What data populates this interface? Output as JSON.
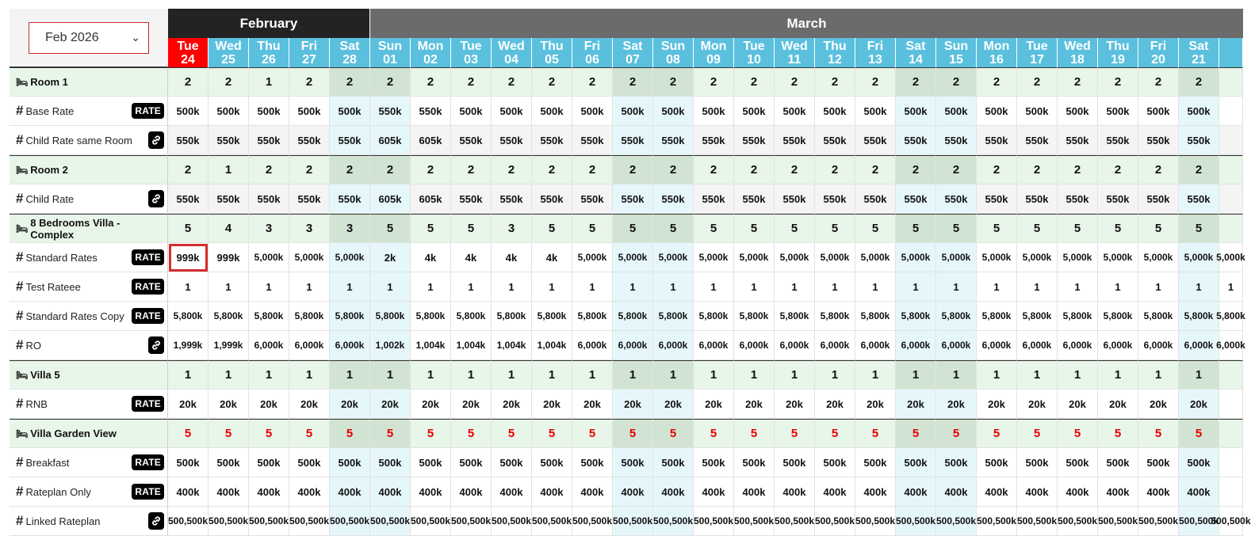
{
  "month_select": {
    "value": "Feb 2026"
  },
  "months": [
    {
      "name": "February",
      "span": 5
    },
    {
      "name": "March",
      "span": 22
    }
  ],
  "days": [
    {
      "dow": "Tue",
      "d": "24",
      "weekend": false,
      "today": true
    },
    {
      "dow": "Wed",
      "d": "25",
      "weekend": false
    },
    {
      "dow": "Thu",
      "d": "26",
      "weekend": false
    },
    {
      "dow": "Fri",
      "d": "27",
      "weekend": false
    },
    {
      "dow": "Sat",
      "d": "28",
      "weekend": true
    },
    {
      "dow": "Sun",
      "d": "01",
      "weekend": true
    },
    {
      "dow": "Mon",
      "d": "02",
      "weekend": false
    },
    {
      "dow": "Tue",
      "d": "03",
      "weekend": false
    },
    {
      "dow": "Wed",
      "d": "04",
      "weekend": false
    },
    {
      "dow": "Thu",
      "d": "05",
      "weekend": false
    },
    {
      "dow": "Fri",
      "d": "06",
      "weekend": false
    },
    {
      "dow": "Sat",
      "d": "07",
      "weekend": true
    },
    {
      "dow": "Sun",
      "d": "08",
      "weekend": true
    },
    {
      "dow": "Mon",
      "d": "09",
      "weekend": false
    },
    {
      "dow": "Tue",
      "d": "10",
      "weekend": false
    },
    {
      "dow": "Wed",
      "d": "11",
      "weekend": false
    },
    {
      "dow": "Thu",
      "d": "12",
      "weekend": false
    },
    {
      "dow": "Fri",
      "d": "13",
      "weekend": false
    },
    {
      "dow": "Sat",
      "d": "14",
      "weekend": true
    },
    {
      "dow": "Sun",
      "d": "15",
      "weekend": true
    },
    {
      "dow": "Mon",
      "d": "16",
      "weekend": false
    },
    {
      "dow": "Tue",
      "d": "17",
      "weekend": false
    },
    {
      "dow": "Wed",
      "d": "18",
      "weekend": false
    },
    {
      "dow": "Thu",
      "d": "19",
      "weekend": false
    },
    {
      "dow": "Fri",
      "d": "20",
      "weekend": false
    },
    {
      "dow": "Sat",
      "d": "21",
      "weekend": true
    },
    {
      "dow": "",
      "d": "",
      "weekend": false
    }
  ],
  "badge_text": "RATE",
  "rows": [
    {
      "type": "room",
      "label": "Room 1",
      "values": [
        "2",
        "2",
        "1",
        "2",
        "2",
        "2",
        "2",
        "2",
        "2",
        "2",
        "2",
        "2",
        "2",
        "2",
        "2",
        "2",
        "2",
        "2",
        "2",
        "2",
        "2",
        "2",
        "2",
        "2",
        "2",
        "2",
        ""
      ]
    },
    {
      "type": "rate",
      "label": "Base Rate",
      "badge": "rate",
      "values": [
        "500k",
        "500k",
        "500k",
        "500k",
        "500k",
        "550k",
        "550k",
        "500k",
        "500k",
        "500k",
        "500k",
        "500k",
        "500k",
        "500k",
        "500k",
        "500k",
        "500k",
        "500k",
        "500k",
        "500k",
        "500k",
        "500k",
        "500k",
        "500k",
        "500k",
        "500k",
        ""
      ]
    },
    {
      "type": "rate",
      "label": "Child Rate same Room",
      "badge": "link",
      "alt": true,
      "values": [
        "550k",
        "550k",
        "550k",
        "550k",
        "550k",
        "605k",
        "605k",
        "550k",
        "550k",
        "550k",
        "550k",
        "550k",
        "550k",
        "550k",
        "550k",
        "550k",
        "550k",
        "550k",
        "550k",
        "550k",
        "550k",
        "550k",
        "550k",
        "550k",
        "550k",
        "550k",
        ""
      ]
    },
    {
      "type": "room",
      "label": "Room 2",
      "values": [
        "2",
        "1",
        "2",
        "2",
        "2",
        "2",
        "2",
        "2",
        "2",
        "2",
        "2",
        "2",
        "2",
        "2",
        "2",
        "2",
        "2",
        "2",
        "2",
        "2",
        "2",
        "2",
        "2",
        "2",
        "2",
        "2",
        ""
      ]
    },
    {
      "type": "rate",
      "label": "Child Rate",
      "badge": "link",
      "alt": true,
      "values": [
        "550k",
        "550k",
        "550k",
        "550k",
        "550k",
        "605k",
        "605k",
        "550k",
        "550k",
        "550k",
        "550k",
        "550k",
        "550k",
        "550k",
        "550k",
        "550k",
        "550k",
        "550k",
        "550k",
        "550k",
        "550k",
        "550k",
        "550k",
        "550k",
        "550k",
        "550k",
        ""
      ]
    },
    {
      "type": "room",
      "label": "8 Bedrooms Villa - Complex",
      "values": [
        "5",
        "4",
        "3",
        "3",
        "3",
        "5",
        "5",
        "5",
        "3",
        "5",
        "5",
        "5",
        "5",
        "5",
        "5",
        "5",
        "5",
        "5",
        "5",
        "5",
        "5",
        "5",
        "5",
        "5",
        "5",
        "5",
        ""
      ]
    },
    {
      "type": "rate",
      "label": "Standard Rates",
      "badge": "rate",
      "selected": 0,
      "values": [
        "999k",
        "999k",
        "5,000k",
        "5,000k",
        "5,000k",
        "2k",
        "4k",
        "4k",
        "4k",
        "4k",
        "5,000k",
        "5,000k",
        "5,000k",
        "5,000k",
        "5,000k",
        "5,000k",
        "5,000k",
        "5,000k",
        "5,000k",
        "5,000k",
        "5,000k",
        "5,000k",
        "5,000k",
        "5,000k",
        "5,000k",
        "5,000k",
        "5,000k"
      ]
    },
    {
      "type": "rate",
      "label": "Test Rateee",
      "badge": "rate",
      "values": [
        "1",
        "1",
        "1",
        "1",
        "1",
        "1",
        "1",
        "1",
        "1",
        "1",
        "1",
        "1",
        "1",
        "1",
        "1",
        "1",
        "1",
        "1",
        "1",
        "1",
        "1",
        "1",
        "1",
        "1",
        "1",
        "1",
        "1"
      ]
    },
    {
      "type": "rate",
      "label": "Standard Rates Copy",
      "badge": "rate",
      "values": [
        "5,800k",
        "5,800k",
        "5,800k",
        "5,800k",
        "5,800k",
        "5,800k",
        "5,800k",
        "5,800k",
        "5,800k",
        "5,800k",
        "5,800k",
        "5,800k",
        "5,800k",
        "5,800k",
        "5,800k",
        "5,800k",
        "5,800k",
        "5,800k",
        "5,800k",
        "5,800k",
        "5,800k",
        "5,800k",
        "5,800k",
        "5,800k",
        "5,800k",
        "5,800k",
        "5,800k"
      ]
    },
    {
      "type": "rate",
      "label": "RO",
      "badge": "link",
      "values": [
        "1,999k",
        "1,999k",
        "6,000k",
        "6,000k",
        "6,000k",
        "1,002k",
        "1,004k",
        "1,004k",
        "1,004k",
        "1,004k",
        "6,000k",
        "6,000k",
        "6,000k",
        "6,000k",
        "6,000k",
        "6,000k",
        "6,000k",
        "6,000k",
        "6,000k",
        "6,000k",
        "6,000k",
        "6,000k",
        "6,000k",
        "6,000k",
        "6,000k",
        "6,000k",
        "6,000k"
      ]
    },
    {
      "type": "room",
      "label": "Villa 5",
      "values": [
        "1",
        "1",
        "1",
        "1",
        "1",
        "1",
        "1",
        "1",
        "1",
        "1",
        "1",
        "1",
        "1",
        "1",
        "1",
        "1",
        "1",
        "1",
        "1",
        "1",
        "1",
        "1",
        "1",
        "1",
        "1",
        "1",
        ""
      ]
    },
    {
      "type": "rate",
      "label": "RNB",
      "badge": "rate",
      "values": [
        "20k",
        "20k",
        "20k",
        "20k",
        "20k",
        "20k",
        "20k",
        "20k",
        "20k",
        "20k",
        "20k",
        "20k",
        "20k",
        "20k",
        "20k",
        "20k",
        "20k",
        "20k",
        "20k",
        "20k",
        "20k",
        "20k",
        "20k",
        "20k",
        "20k",
        "20k",
        ""
      ]
    },
    {
      "type": "room",
      "label": "Villa Garden View",
      "red": true,
      "values": [
        "5",
        "5",
        "5",
        "5",
        "5",
        "5",
        "5",
        "5",
        "5",
        "5",
        "5",
        "5",
        "5",
        "5",
        "5",
        "5",
        "5",
        "5",
        "5",
        "5",
        "5",
        "5",
        "5",
        "5",
        "5",
        "5",
        ""
      ]
    },
    {
      "type": "rate",
      "label": "Breakfast",
      "badge": "rate",
      "values": [
        "500k",
        "500k",
        "500k",
        "500k",
        "500k",
        "500k",
        "500k",
        "500k",
        "500k",
        "500k",
        "500k",
        "500k",
        "500k",
        "500k",
        "500k",
        "500k",
        "500k",
        "500k",
        "500k",
        "500k",
        "500k",
        "500k",
        "500k",
        "500k",
        "500k",
        "500k",
        ""
      ]
    },
    {
      "type": "rate",
      "label": "Rateplan Only",
      "badge": "rate",
      "values": [
        "400k",
        "400k",
        "400k",
        "400k",
        "400k",
        "400k",
        "400k",
        "400k",
        "400k",
        "400k",
        "400k",
        "400k",
        "400k",
        "400k",
        "400k",
        "400k",
        "400k",
        "400k",
        "400k",
        "400k",
        "400k",
        "400k",
        "400k",
        "400k",
        "400k",
        "400k",
        ""
      ]
    },
    {
      "type": "rate",
      "label": "Linked Rateplan",
      "badge": "link",
      "values": [
        "500,500k",
        "500,500k",
        "500,500k",
        "500,500k",
        "500,500k",
        "500,500k",
        "500,500k",
        "500,500k",
        "500,500k",
        "500,500k",
        "500,500k",
        "500,500k",
        "500,500k",
        "500,500k",
        "500,500k",
        "500,500k",
        "500,500k",
        "500,500k",
        "500,500k",
        "500,500k",
        "500,500k",
        "500,500k",
        "500,500k",
        "500,500k",
        "500,500k",
        "500,500k",
        "500,500k"
      ]
    }
  ]
}
